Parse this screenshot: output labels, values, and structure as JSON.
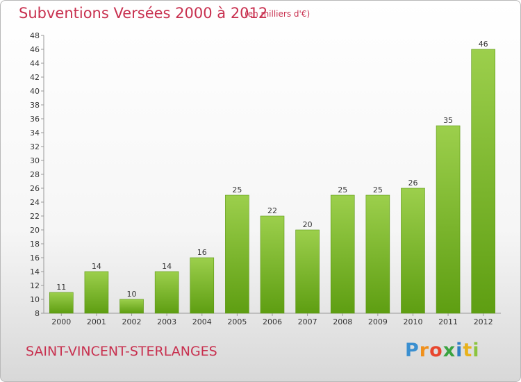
{
  "header": {
    "title": "Subventions Versées 2000 à 2012",
    "unit_note": "(en milliers d'€)"
  },
  "footer": {
    "place": "SAINT-VINCENT-STERLANGES",
    "brand_letters": [
      "P",
      "r",
      "o",
      "x",
      "i",
      "t",
      "i"
    ],
    "brand_colors": [
      "#3a8fd0",
      "#f0901c",
      "#e8462e",
      "#3aa340",
      "#2f7ec4",
      "#e8b21c",
      "#8bc43f"
    ]
  },
  "colors": {
    "title": "#c8304f",
    "bar_top": "#9ccf4c",
    "bar_bottom": "#5e9e12"
  },
  "chart_data": {
    "type": "bar",
    "categories": [
      "2000",
      "2001",
      "2002",
      "2003",
      "2004",
      "2005",
      "2006",
      "2007",
      "2008",
      "2009",
      "2010",
      "2011",
      "2012"
    ],
    "values": [
      11,
      14,
      10,
      14,
      16,
      25,
      22,
      20,
      25,
      25,
      26,
      35,
      46
    ],
    "ylim": [
      8,
      48
    ],
    "yticks": [
      8,
      10,
      12,
      14,
      16,
      18,
      20,
      22,
      24,
      26,
      28,
      30,
      32,
      34,
      36,
      38,
      40,
      42,
      44,
      46,
      48
    ],
    "grid": false,
    "data_labels": true
  }
}
